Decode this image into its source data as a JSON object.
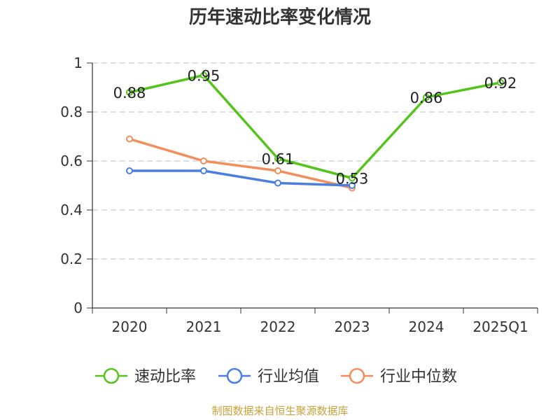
{
  "title": "历年速动比率变化情况",
  "footer": "制图数据来自恒生聚源数据库",
  "chart_data": {
    "type": "line",
    "categories": [
      "2020",
      "2021",
      "2022",
      "2023",
      "2024",
      "2025Q1"
    ],
    "ylim": [
      0,
      1
    ],
    "yticks": [
      0,
      0.2,
      0.4,
      0.6,
      0.8,
      1
    ],
    "ytick_labels": [
      "0",
      "0.2",
      "0.4",
      "0.6",
      "0.8",
      "1"
    ],
    "grid": true,
    "legend_position": "bottom",
    "series": [
      {
        "name": "速动比率",
        "color": "#52c41a",
        "values": [
          0.88,
          0.95,
          0.61,
          0.53,
          0.86,
          0.92
        ],
        "data_labels": [
          "0.88",
          "0.95",
          "0.61",
          "0.53",
          "0.86",
          "0.92"
        ]
      },
      {
        "name": "行业均值",
        "color": "#4a7fe0",
        "values": [
          0.56,
          0.56,
          0.51,
          0.5,
          null,
          null
        ]
      },
      {
        "name": "行业中位数",
        "color": "#f28e5b",
        "values": [
          0.69,
          0.6,
          0.56,
          0.49,
          null,
          null
        ]
      }
    ]
  }
}
